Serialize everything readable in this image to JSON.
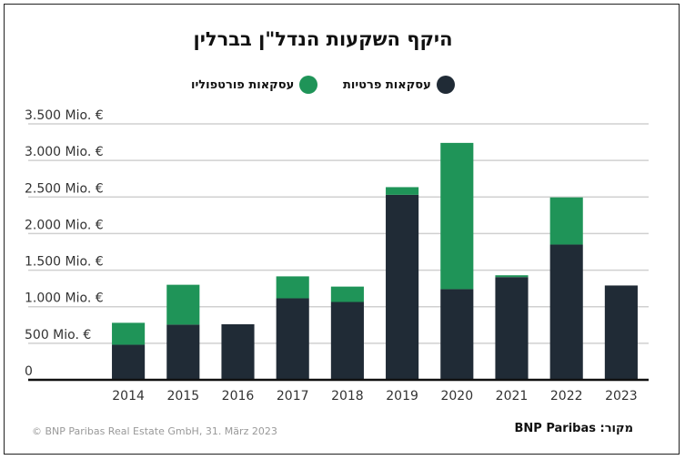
{
  "chart_data": {
    "type": "bar",
    "stacked": true,
    "title": "היקף השקעות הנדל\"ן בברלין",
    "categories": [
      "2014",
      "2015",
      "2016",
      "2017",
      "2018",
      "2019",
      "2020",
      "2021",
      "2022",
      "2023"
    ],
    "series": [
      {
        "name": "עסקאות פרטיות",
        "color": "#202b36",
        "values": [
          480,
          755,
          760,
          1115,
          1065,
          2530,
          1240,
          1405,
          1850,
          1290
        ]
      },
      {
        "name": "עסקאות פורטפוליו",
        "color": "#1f9458",
        "values": [
          300,
          545,
          0,
          300,
          210,
          105,
          2000,
          25,
          645,
          0
        ]
      }
    ],
    "ylim": [
      0,
      3500
    ],
    "yticks": [
      0,
      500,
      1000,
      1500,
      2000,
      2500,
      3000,
      3500
    ],
    "ytick_labels": [
      "0",
      "500 Mio. €",
      "1.000 Mio. €",
      "1.500 Mio. €",
      "2.000 Mio. €",
      "2.500 Mio. €",
      "3.000 Mio. €",
      "3.500 Mio. €"
    ],
    "grid": true,
    "legend_position": "top"
  },
  "footer": {
    "copyright": "© BNP Paribas Real Estate GmbH, 31. März 2023",
    "source": "מקור: BNP Paribas"
  }
}
